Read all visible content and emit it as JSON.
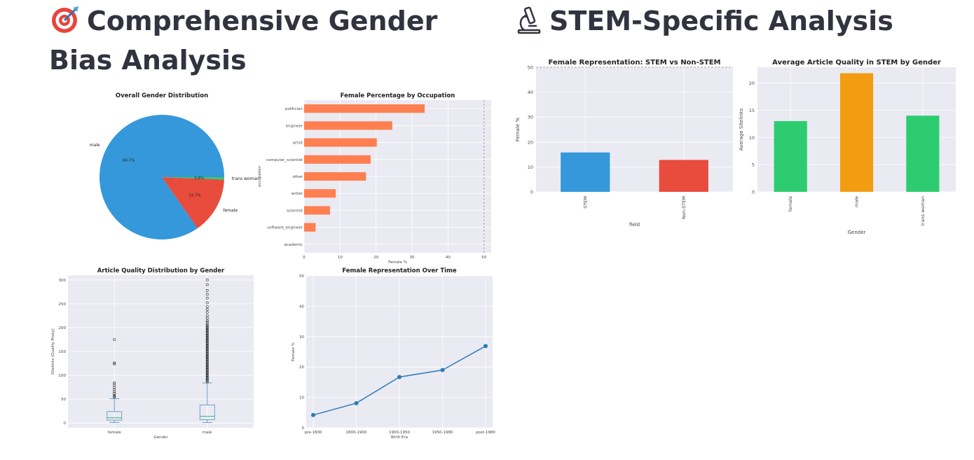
{
  "headings": {
    "left": {
      "icon": "target-icon",
      "text": "Comprehensive Gender Bias Analysis"
    },
    "right": {
      "icon": "microscope-icon",
      "text": "STEM-Specific Analysis"
    }
  },
  "colors": {
    "blue": "#3498db",
    "red": "#e74c3c",
    "green": "#2ecc71",
    "orange": "#f39c12",
    "coral": "#ff7f50",
    "line": "#2b7bba",
    "panel_bg": "#eaeaf2",
    "grid": "#ffffff"
  },
  "chart_data": [
    {
      "id": "gender-pie",
      "type": "pie",
      "title": "Overall Gender Distribution",
      "slices": [
        {
          "label": "male",
          "value": 84.7,
          "pct_label": "84.7%",
          "color": "#3498db"
        },
        {
          "label": "female",
          "value": 14.7,
          "pct_label": "14.7%",
          "color": "#e74c3c"
        },
        {
          "label": "trans woman",
          "value": 0.6,
          "pct_label": "0.6%",
          "color": "#2ecc71"
        }
      ]
    },
    {
      "id": "occupation-bar",
      "type": "bar",
      "orientation": "horizontal",
      "title": "Female Percentage by Occupation",
      "xlabel": "Female %",
      "ylabel": "occupation",
      "categories": [
        "politician",
        "engineer",
        "artist",
        "computer_scientist",
        "other",
        "writer",
        "scientist",
        "software_engineer",
        "academic"
      ],
      "values": [
        33.5,
        24.5,
        20.2,
        18.5,
        17.2,
        8.8,
        7.2,
        3.2,
        0
      ],
      "xlim": [
        0,
        52
      ],
      "xticks": [
        "0",
        "10",
        "20",
        "30",
        "40",
        "50"
      ],
      "reference_line": 50,
      "color": "#ff7f50",
      "grid": true
    },
    {
      "id": "quality-box",
      "type": "box",
      "title": "Article Quality Distribution by Gender",
      "xlabel": "Gender",
      "ylabel": "Sitelinks (Quality Proxy)",
      "ylim": [
        -10,
        310
      ],
      "yticks": [
        "0",
        "50",
        "100",
        "150",
        "200",
        "250",
        "300"
      ],
      "groups": [
        {
          "name": "female",
          "whisker_low": 1,
          "q1": 6,
          "median": 11,
          "q3": 24,
          "whisker_high": 51,
          "outliers": [
            54,
            56,
            58,
            62,
            66,
            70,
            75,
            80,
            84,
            124,
            126,
            175
          ]
        },
        {
          "name": "male",
          "whisker_low": 1,
          "q1": 7,
          "median": 14,
          "q3": 38,
          "whisker_high": 84,
          "outliers": [
            86,
            88,
            90,
            92,
            94,
            96,
            98,
            100,
            102,
            104,
            106,
            108,
            110,
            112,
            114,
            116,
            118,
            120,
            122,
            124,
            126,
            128,
            130,
            132,
            134,
            136,
            138,
            140,
            142,
            144,
            146,
            148,
            150,
            152,
            154,
            156,
            158,
            160,
            162,
            164,
            166,
            168,
            170,
            172,
            174,
            176,
            178,
            180,
            182,
            184,
            186,
            188,
            190,
            192,
            194,
            196,
            198,
            200,
            202,
            205,
            208,
            212,
            215,
            220,
            225,
            232,
            238,
            244,
            252,
            262,
            270,
            278,
            290,
            300
          ]
        }
      ],
      "grid": true
    },
    {
      "id": "time-line",
      "type": "line",
      "title": "Female Representation Over Time",
      "xlabel": "Birth Era",
      "ylabel": "Female %",
      "categories": [
        "pre-1800",
        "1800-1900",
        "1900-1950",
        "1950-1980",
        "post-1980"
      ],
      "values": [
        4.2,
        8.1,
        16.7,
        19.0,
        26.9
      ],
      "ylim": [
        0,
        50
      ],
      "yticks": [
        "0",
        "10",
        "20",
        "30",
        "40",
        "50"
      ],
      "color": "#2b7bba",
      "grid": true
    },
    {
      "id": "stem-bar",
      "type": "bar",
      "title": "Female Representation: STEM vs Non-STEM",
      "xlabel": "field",
      "ylabel": "Female %",
      "categories": [
        "STEM",
        "Non-STEM"
      ],
      "values": [
        15.8,
        12.8
      ],
      "colors": [
        "#3498db",
        "#e74c3c"
      ],
      "ylim": [
        0,
        50
      ],
      "yticks": [
        "0",
        "10",
        "20",
        "30",
        "40",
        "50"
      ],
      "reference_line": 50,
      "grid": true
    },
    {
      "id": "stem-quality-bar",
      "type": "bar",
      "title": "Average Article Quality in STEM by Gender",
      "xlabel": "Gender",
      "ylabel": "Average Sitelinks",
      "categories": [
        "female",
        "male",
        "trans woman"
      ],
      "values": [
        13.0,
        21.8,
        14.0
      ],
      "colors": [
        "#2ecc71",
        "#f39c12",
        "#2ecc71"
      ],
      "ylim": [
        0,
        22.9
      ],
      "yticks": [
        "0",
        "5",
        "10",
        "15",
        "20"
      ],
      "grid": true
    }
  ]
}
